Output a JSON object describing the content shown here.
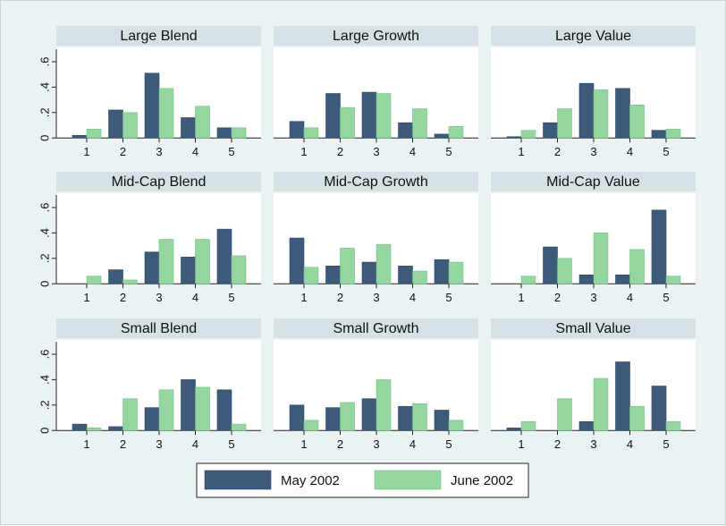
{
  "chart_data": {
    "type": "bar",
    "layout": "small-multiples-3x3",
    "categories": [
      "1",
      "2",
      "3",
      "4",
      "5"
    ],
    "ylim": [
      0,
      0.7
    ],
    "yticks": [
      0,
      0.2,
      0.4,
      0.6
    ],
    "ytick_labels": [
      "0",
      ".2",
      ".4",
      ".6"
    ],
    "grid": false,
    "legend_position": "bottom",
    "series_colors": [
      "#3d5a7a",
      "#93d6a0"
    ],
    "legend": [
      "May 2002",
      "June 2002"
    ],
    "panels": [
      {
        "title": "Large Blend",
        "series": [
          {
            "name": "May 2002",
            "values": [
              0.02,
              0.22,
              0.51,
              0.16,
              0.08
            ]
          },
          {
            "name": "June 2002",
            "values": [
              0.07,
              0.2,
              0.39,
              0.25,
              0.08
            ]
          }
        ]
      },
      {
        "title": "Large Growth",
        "series": [
          {
            "name": "May 2002",
            "values": [
              0.13,
              0.35,
              0.36,
              0.12,
              0.03
            ]
          },
          {
            "name": "June 2002",
            "values": [
              0.08,
              0.24,
              0.35,
              0.23,
              0.09
            ]
          }
        ]
      },
      {
        "title": "Large Value",
        "series": [
          {
            "name": "May 2002",
            "values": [
              0.01,
              0.12,
              0.43,
              0.39,
              0.06
            ]
          },
          {
            "name": "June 2002",
            "values": [
              0.06,
              0.23,
              0.38,
              0.26,
              0.07
            ]
          }
        ]
      },
      {
        "title": "Mid-Cap Blend",
        "series": [
          {
            "name": "May 2002",
            "values": [
              0.0,
              0.11,
              0.25,
              0.21,
              0.43
            ]
          },
          {
            "name": "June 2002",
            "values": [
              0.06,
              0.03,
              0.35,
              0.35,
              0.22
            ]
          }
        ]
      },
      {
        "title": "Mid-Cap Growth",
        "series": [
          {
            "name": "May 2002",
            "values": [
              0.36,
              0.14,
              0.17,
              0.14,
              0.19
            ]
          },
          {
            "name": "June 2002",
            "values": [
              0.13,
              0.28,
              0.31,
              0.1,
              0.17
            ]
          }
        ]
      },
      {
        "title": "Mid-Cap Value",
        "series": [
          {
            "name": "May 2002",
            "values": [
              0.0,
              0.29,
              0.07,
              0.07,
              0.58
            ]
          },
          {
            "name": "June 2002",
            "values": [
              0.06,
              0.2,
              0.4,
              0.27,
              0.06
            ]
          }
        ]
      },
      {
        "title": "Small Blend",
        "series": [
          {
            "name": "May 2002",
            "values": [
              0.05,
              0.03,
              0.18,
              0.4,
              0.32
            ]
          },
          {
            "name": "June 2002",
            "values": [
              0.02,
              0.25,
              0.32,
              0.34,
              0.05
            ]
          }
        ]
      },
      {
        "title": "Small Growth",
        "series": [
          {
            "name": "May 2002",
            "values": [
              0.2,
              0.18,
              0.25,
              0.19,
              0.16
            ]
          },
          {
            "name": "June 2002",
            "values": [
              0.08,
              0.22,
              0.4,
              0.21,
              0.08
            ]
          }
        ]
      },
      {
        "title": "Small Value",
        "series": [
          {
            "name": "May 2002",
            "values": [
              0.02,
              0.0,
              0.07,
              0.54,
              0.35
            ]
          },
          {
            "name": "June 2002",
            "values": [
              0.07,
              0.25,
              0.41,
              0.19,
              0.07
            ]
          }
        ]
      }
    ]
  }
}
